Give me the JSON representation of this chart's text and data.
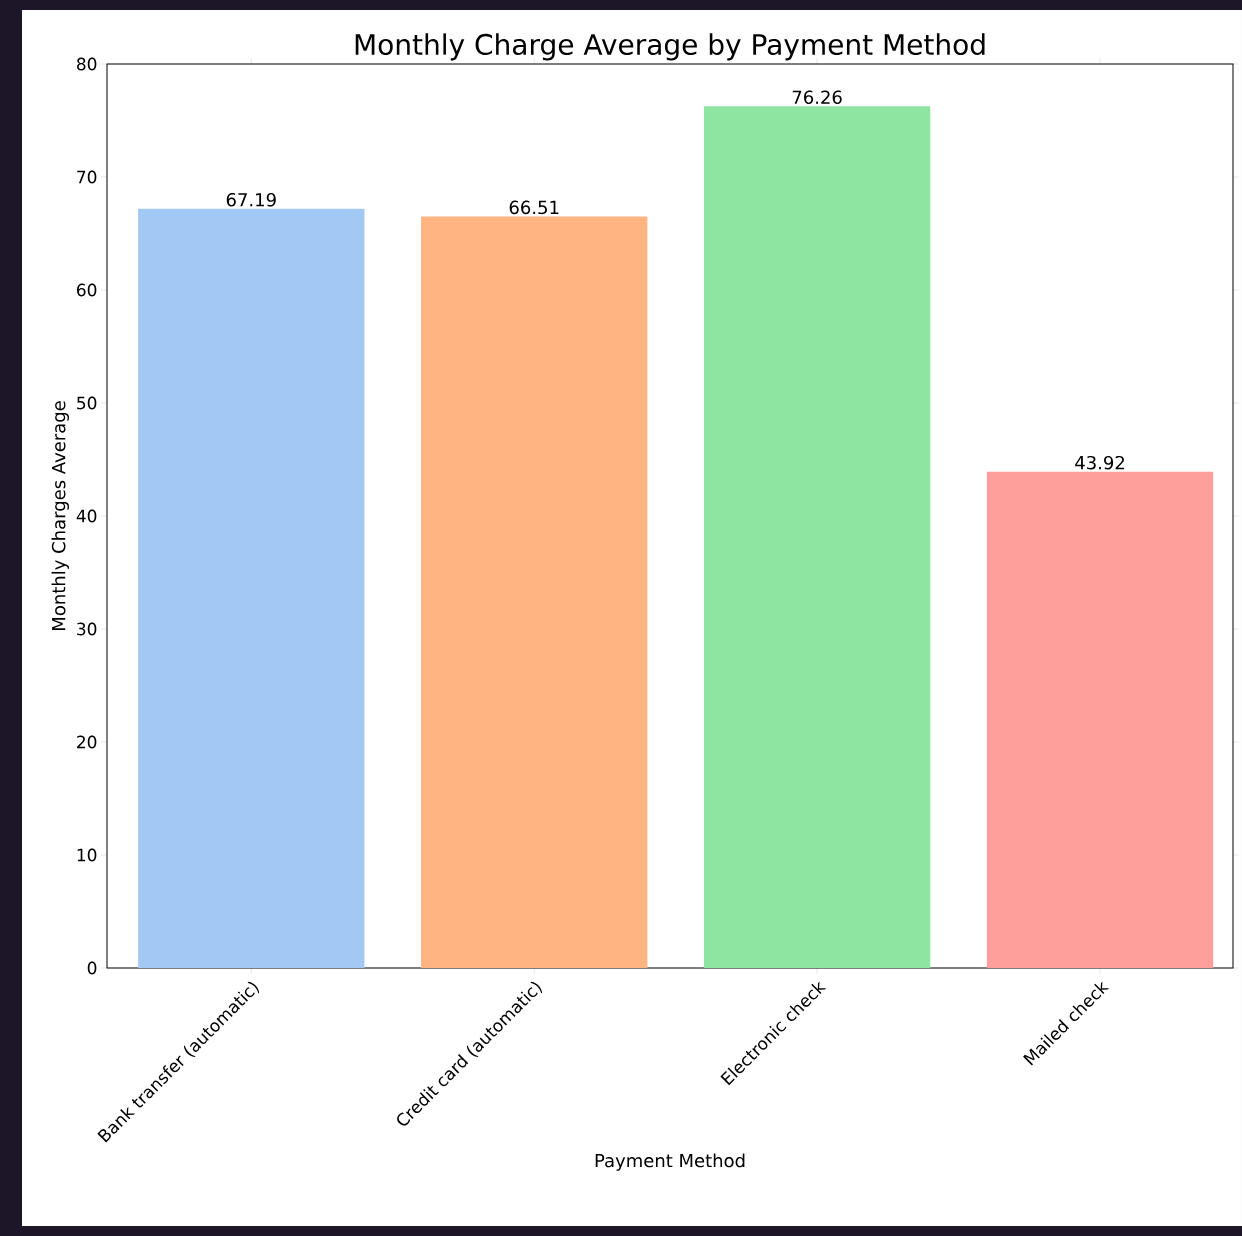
{
  "chart_data": {
    "type": "bar",
    "title": "Monthly Charge Average by Payment Method",
    "xlabel": "Payment Method",
    "ylabel": "Monthly Charges Average",
    "categories": [
      "Bank transfer (automatic)",
      "Credit card (automatic)",
      "Electronic check",
      "Mailed check"
    ],
    "values": [
      67.19,
      66.51,
      76.26,
      43.92
    ],
    "colors": [
      "#a1c9f4",
      "#ffb482",
      "#8de5a1",
      "#ff9f9b"
    ],
    "ylim": [
      0,
      80
    ],
    "yticks": [
      0,
      10,
      20,
      30,
      40,
      50,
      60,
      70,
      80
    ],
    "data_labels": true
  }
}
